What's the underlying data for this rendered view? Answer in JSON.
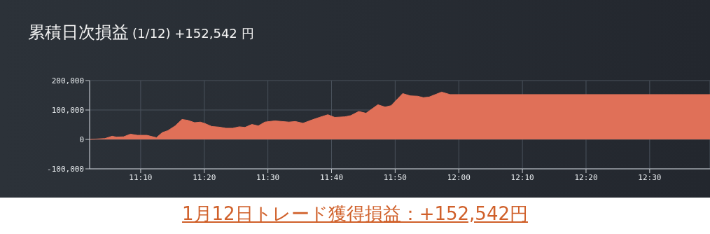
{
  "chart_data": {
    "type": "area",
    "title": "累積日次損益",
    "subtitle": "(1/12) +152,542 円",
    "annotations": [
      "1月12日トレード獲得損益：+152,542円"
    ],
    "x": [
      11.033,
      11.073,
      11.092,
      11.103,
      11.122,
      11.14,
      11.158,
      11.183,
      11.208,
      11.223,
      11.238,
      11.257,
      11.275,
      11.29,
      11.308,
      11.323,
      11.335,
      11.353,
      11.372,
      11.39,
      11.408,
      11.425,
      11.44,
      11.458,
      11.475,
      11.492,
      11.518,
      11.555,
      11.572,
      11.592,
      11.617,
      11.635,
      11.657,
      11.675,
      11.702,
      11.717,
      11.738,
      11.757,
      11.788,
      11.807,
      11.823,
      11.853,
      11.873,
      11.892,
      11.907,
      11.922,
      11.955,
      11.977,
      12.658
    ],
    "values": [
      0,
      3000,
      11000,
      8000,
      9000,
      18000,
      14000,
      14000,
      6000,
      23000,
      30000,
      46000,
      68000,
      65000,
      57000,
      59000,
      54000,
      44000,
      42000,
      38000,
      38000,
      43000,
      41000,
      51000,
      46000,
      59000,
      63000,
      59000,
      61000,
      55000,
      67000,
      75000,
      84000,
      75000,
      77000,
      81000,
      95000,
      89000,
      118000,
      110000,
      115000,
      156000,
      148000,
      147000,
      142000,
      144000,
      161000,
      152542,
      152542
    ],
    "color": "#e07058",
    "xlim": [
      11.033,
      12.658
    ],
    "xticks": [
      {
        "value": 11.1667,
        "label": "11:10"
      },
      {
        "value": 11.3333,
        "label": "11:20"
      },
      {
        "value": 11.5,
        "label": "11:30"
      },
      {
        "value": 11.6667,
        "label": "11:40"
      },
      {
        "value": 11.8333,
        "label": "11:50"
      },
      {
        "value": 12,
        "label": "12:00"
      },
      {
        "value": 12.1667,
        "label": "12:10"
      },
      {
        "value": 12.3333,
        "label": "12:20"
      },
      {
        "value": 12.5,
        "label": "12:30"
      }
    ],
    "ylim": [
      -100000,
      200000
    ],
    "yticks": [
      {
        "value": -100000,
        "label": "-100,000"
      },
      {
        "value": 0,
        "label": "0"
      },
      {
        "value": 100000,
        "label": "100,000"
      },
      {
        "value": 200000,
        "label": "200,000"
      }
    ],
    "grid": true
  }
}
